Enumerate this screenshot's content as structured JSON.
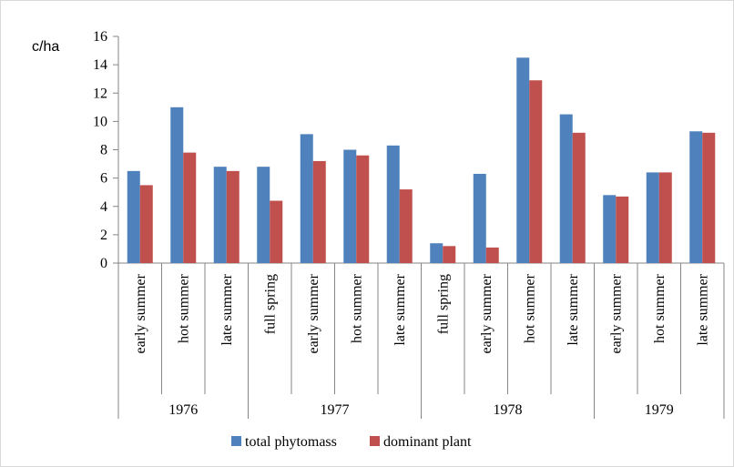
{
  "chart_data": {
    "type": "bar",
    "ylabel": "c/ha",
    "ylim": [
      0,
      16
    ],
    "yticks": [
      "0",
      "2",
      "4",
      "6",
      "8",
      "10",
      "12",
      "14",
      "16"
    ],
    "grid": false,
    "legend_position": "bottom",
    "groups": [
      {
        "label": "1976",
        "categories": [
          "early summer",
          "hot summer",
          "late summer"
        ]
      },
      {
        "label": "1977",
        "categories": [
          "full spring",
          "early summer",
          "hot summer",
          "late summer"
        ]
      },
      {
        "label": "1978",
        "categories": [
          "full spring",
          "early summer",
          "hot summer",
          "late summer"
        ]
      },
      {
        "label": "1979",
        "categories": [
          "early summer",
          "hot summer",
          "late summer"
        ]
      }
    ],
    "series": [
      {
        "name": "total phytomass",
        "color": "#4f81bd",
        "values": [
          6.5,
          11.0,
          6.8,
          6.8,
          9.1,
          8.0,
          8.3,
          1.4,
          6.3,
          14.5,
          10.5,
          4.8,
          6.4,
          9.3
        ]
      },
      {
        "name": "dominant plant",
        "color": "#c0504d",
        "values": [
          5.5,
          7.8,
          6.5,
          4.4,
          7.2,
          7.6,
          5.2,
          1.2,
          1.1,
          12.9,
          9.2,
          4.7,
          6.4,
          9.2
        ]
      }
    ]
  }
}
